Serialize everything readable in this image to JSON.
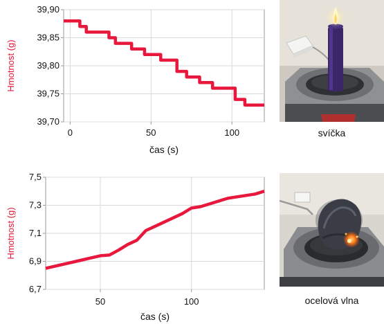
{
  "chart_data": [
    {
      "type": "line",
      "title": "",
      "xlabel": "čas (s)",
      "ylabel": "Hmotnost (g)",
      "xlim": [
        -4,
        120
      ],
      "ylim": [
        39.7,
        39.9
      ],
      "x_ticks": [
        0,
        50,
        100
      ],
      "x_tick_labels": [
        "0",
        "50",
        "100"
      ],
      "y_ticks": [
        39.7,
        39.75,
        39.8,
        39.85,
        39.9
      ],
      "y_tick_labels": [
        "39,70",
        "39,75",
        "39,80",
        "39,85",
        "39,90"
      ],
      "grid": true,
      "series": [
        {
          "x": [
            -4,
            6,
            6,
            10,
            10,
            24,
            24,
            28,
            28,
            38,
            38,
            46,
            46,
            56,
            56,
            66,
            66,
            72,
            72,
            80,
            80,
            88,
            88,
            102,
            102,
            108,
            108,
            120
          ],
          "values": [
            39.88,
            39.88,
            39.87,
            39.87,
            39.86,
            39.86,
            39.85,
            39.85,
            39.84,
            39.84,
            39.83,
            39.83,
            39.82,
            39.82,
            39.81,
            39.81,
            39.79,
            39.79,
            39.78,
            39.78,
            39.77,
            39.77,
            39.76,
            39.76,
            39.74,
            39.74,
            39.73,
            39.73
          ]
        }
      ]
    },
    {
      "type": "line",
      "title": "",
      "xlabel": "čas (s)",
      "ylabel": "Hmotnost (g)",
      "xlim": [
        20,
        140
      ],
      "ylim": [
        6.7,
        7.5
      ],
      "x_ticks": [
        50,
        100
      ],
      "x_tick_labels": [
        "50",
        "100"
      ],
      "y_ticks": [
        6.7,
        6.9,
        7.1,
        7.3,
        7.5
      ],
      "y_tick_labels": [
        "6,7",
        "6,9",
        "7,1",
        "7,3",
        "7,5"
      ],
      "grid": true,
      "series": [
        {
          "x": [
            20,
            30,
            40,
            50,
            55,
            60,
            65,
            70,
            75,
            80,
            85,
            90,
            95,
            100,
            105,
            110,
            115,
            120,
            125,
            130,
            135,
            140
          ],
          "values": [
            6.85,
            6.88,
            6.91,
            6.94,
            6.945,
            6.98,
            7.02,
            7.05,
            7.12,
            7.15,
            7.18,
            7.21,
            7.24,
            7.28,
            7.29,
            7.31,
            7.33,
            7.35,
            7.36,
            7.37,
            7.38,
            7.4
          ]
        }
      ]
    }
  ],
  "colors": {
    "series_line": "#e8173c",
    "ylabel": "#e8173c",
    "grid": "#d9d9d9",
    "axis": "#999999"
  },
  "photos": [
    {
      "caption": "svíčka",
      "icon": "candle-on-scale-photo"
    },
    {
      "caption": "ocelová vlna",
      "icon": "burning-steel-wool-on-scale-photo"
    }
  ]
}
